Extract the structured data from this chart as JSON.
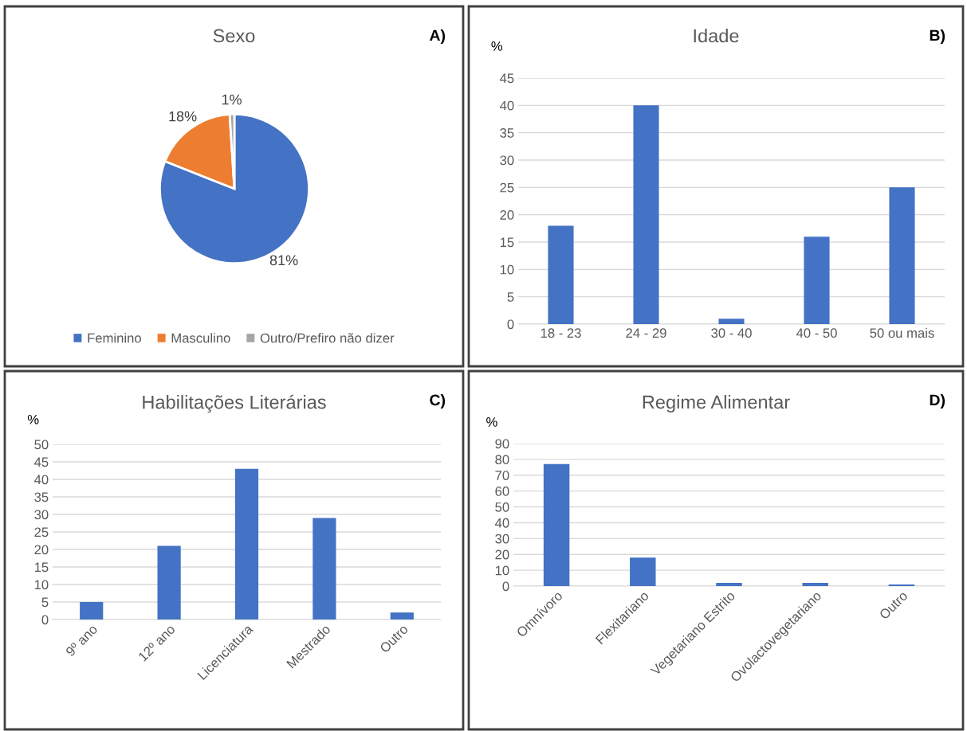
{
  "chart_data": [
    {
      "type": "pie",
      "title": "Sexo",
      "categories": [
        "Feminino",
        "Masculino",
        "Outro/Prefiro não dizer"
      ],
      "values": [
        81,
        18,
        1
      ],
      "colors": [
        "#4472c4",
        "#ed7d31",
        "#a5a5a5"
      ],
      "value_labels": [
        "81%",
        "18%",
        "1%"
      ],
      "legend": "bottom",
      "annotations": [
        "A)"
      ]
    },
    {
      "type": "bar",
      "title": "Idade",
      "ylabel": "%",
      "categories": [
        "18 - 23",
        "24 - 29",
        "30 - 40",
        "40 - 50",
        "50 ou mais"
      ],
      "values": [
        18,
        40,
        1,
        16,
        25
      ],
      "color": "#4472c4",
      "ylim": [
        0,
        45
      ],
      "yticks": [
        0,
        5,
        10,
        15,
        20,
        25,
        30,
        35,
        40,
        45
      ],
      "grid": "y",
      "annotations": [
        "B)"
      ]
    },
    {
      "type": "bar",
      "title": "Habilitações Literárias",
      "ylabel": "%",
      "categories": [
        "9º ano",
        "12º ano",
        "Licenciatura",
        "Mestrado",
        "Outro"
      ],
      "values": [
        5,
        21,
        43,
        29,
        2
      ],
      "color": "#4472c4",
      "ylim": [
        0,
        50
      ],
      "yticks": [
        0,
        5,
        10,
        15,
        20,
        25,
        30,
        35,
        40,
        45,
        50
      ],
      "grid": "y",
      "annotations": [
        "C)"
      ]
    },
    {
      "type": "bar",
      "title": "Regime Alimentar",
      "ylabel": "%",
      "categories": [
        "Omnívoro",
        "Flexitariano",
        "Vegetariano Estrito",
        "Ovolactovegetariano",
        "Outro"
      ],
      "values": [
        77,
        18,
        2,
        2,
        1
      ],
      "color": "#4472c4",
      "ylim": [
        0,
        90
      ],
      "yticks": [
        0,
        10,
        20,
        30,
        40,
        50,
        60,
        70,
        80,
        90
      ],
      "grid": "y",
      "annotations": [
        "D)"
      ]
    }
  ]
}
